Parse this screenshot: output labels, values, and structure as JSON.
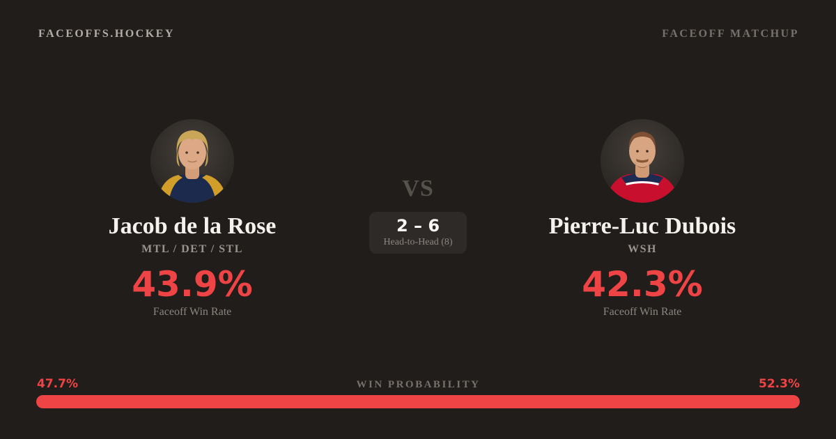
{
  "page": {
    "background": "#211d1a",
    "accent": "#ef4446"
  },
  "header": {
    "brand": "FACEOFFS.HOCKEY",
    "label": "FACEOFF MATCHUP"
  },
  "matchup": {
    "vs_label": "VS",
    "head_to_head": {
      "score": "2 – 6",
      "caption": "Head-to-Head (8)"
    }
  },
  "players": {
    "left": {
      "name": "Jacob de la Rose",
      "teams": "MTL / DET / STL",
      "win_rate": "43.9%",
      "win_rate_caption": "Faceoff Win Rate",
      "photo": "player-photo-blonde-navy-jersey"
    },
    "right": {
      "name": "Pierre-Luc Dubois",
      "teams": "WSH",
      "win_rate": "42.3%",
      "win_rate_caption": "Faceoff Win Rate",
      "photo": "player-photo-auburn-red-jersey"
    }
  },
  "win_probability": {
    "title": "WIN PROBABILITY",
    "left_pct_label": "47.7%",
    "right_pct_label": "52.3%",
    "left_value": 47.7,
    "right_value": 52.3,
    "bar_color": "#ef4446"
  }
}
